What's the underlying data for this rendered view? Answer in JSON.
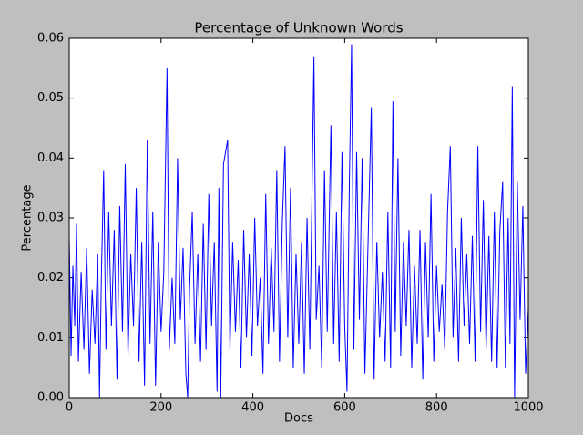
{
  "chart_data": {
    "type": "line",
    "title": "Percentage of Unknown Words",
    "x_label": "Docs",
    "y_label": "Percentage",
    "color": "#0000ff",
    "x": [
      0,
      4,
      8,
      12,
      16,
      20,
      26,
      32,
      38,
      44,
      50,
      56,
      62,
      66,
      70,
      75,
      80,
      86,
      92,
      98,
      104,
      110,
      116,
      122,
      128,
      134,
      140,
      146,
      152,
      158,
      164,
      170,
      176,
      182,
      188,
      194,
      200,
      206,
      213,
      218,
      224,
      230,
      236,
      242,
      248,
      254,
      258,
      262,
      268,
      274,
      280,
      286,
      292,
      298,
      304,
      310,
      316,
      322,
      326,
      330,
      336,
      345,
      350,
      356,
      362,
      368,
      374,
      380,
      386,
      392,
      398,
      404,
      410,
      416,
      422,
      428,
      434,
      440,
      446,
      452,
      458,
      464,
      470,
      476,
      482,
      488,
      494,
      500,
      506,
      512,
      518,
      524,
      533,
      538,
      544,
      550,
      556,
      562,
      570,
      576,
      582,
      588,
      594,
      600,
      605,
      610,
      615,
      620,
      626,
      632,
      638,
      644,
      650,
      658,
      664,
      670,
      676,
      682,
      688,
      694,
      700,
      705,
      710,
      716,
      722,
      728,
      734,
      740,
      746,
      752,
      758,
      764,
      770,
      776,
      782,
      788,
      794,
      800,
      806,
      812,
      818,
      824,
      830,
      836,
      842,
      848,
      854,
      860,
      866,
      872,
      878,
      884,
      890,
      896,
      902,
      908,
      914,
      920,
      926,
      932,
      938,
      944,
      950,
      956,
      960,
      965,
      970,
      976,
      982,
      988,
      994,
      1000
    ],
    "values": [
      0.027,
      0.007,
      0.022,
      0.012,
      0.029,
      0.006,
      0.021,
      0.008,
      0.025,
      0.004,
      0.018,
      0.009,
      0.024,
      0.0,
      0.02,
      0.038,
      0.008,
      0.031,
      0.012,
      0.028,
      0.003,
      0.032,
      0.011,
      0.039,
      0.007,
      0.024,
      0.012,
      0.035,
      0.006,
      0.026,
      0.002,
      0.043,
      0.009,
      0.031,
      0.002,
      0.026,
      0.011,
      0.021,
      0.055,
      0.008,
      0.02,
      0.009,
      0.04,
      0.013,
      0.025,
      0.004,
      0.0,
      0.018,
      0.031,
      0.009,
      0.024,
      0.006,
      0.029,
      0.008,
      0.034,
      0.012,
      0.026,
      0.001,
      0.035,
      0.0,
      0.039,
      0.043,
      0.008,
      0.026,
      0.011,
      0.023,
      0.005,
      0.028,
      0.01,
      0.024,
      0.007,
      0.03,
      0.012,
      0.02,
      0.004,
      0.034,
      0.009,
      0.025,
      0.011,
      0.038,
      0.006,
      0.029,
      0.042,
      0.01,
      0.035,
      0.005,
      0.024,
      0.009,
      0.026,
      0.004,
      0.03,
      0.008,
      0.057,
      0.013,
      0.022,
      0.005,
      0.038,
      0.011,
      0.0455,
      0.009,
      0.031,
      0.006,
      0.041,
      0.012,
      0.001,
      0.035,
      0.059,
      0.008,
      0.041,
      0.013,
      0.04,
      0.004,
      0.023,
      0.0485,
      0.003,
      0.026,
      0.01,
      0.021,
      0.006,
      0.031,
      0.005,
      0.0495,
      0.011,
      0.04,
      0.007,
      0.026,
      0.012,
      0.028,
      0.005,
      0.022,
      0.009,
      0.028,
      0.003,
      0.026,
      0.01,
      0.034,
      0.006,
      0.022,
      0.011,
      0.019,
      0.008,
      0.031,
      0.042,
      0.01,
      0.025,
      0.006,
      0.03,
      0.012,
      0.024,
      0.009,
      0.027,
      0.006,
      0.042,
      0.011,
      0.033,
      0.008,
      0.027,
      0.006,
      0.031,
      0.005,
      0.028,
      0.036,
      0.005,
      0.03,
      0.009,
      0.052,
      0.0,
      0.036,
      0.013,
      0.032,
      0.004,
      0.015
    ],
    "xlim": [
      0,
      1000
    ],
    "xticks": [
      0,
      200,
      400,
      600,
      800,
      1000
    ],
    "ylim": [
      0,
      0.06
    ],
    "yticks": [
      {
        "value": 0,
        "label": "0.00"
      },
      0.01,
      0.02,
      0.03,
      0.04,
      0.05,
      0.06
    ]
  }
}
